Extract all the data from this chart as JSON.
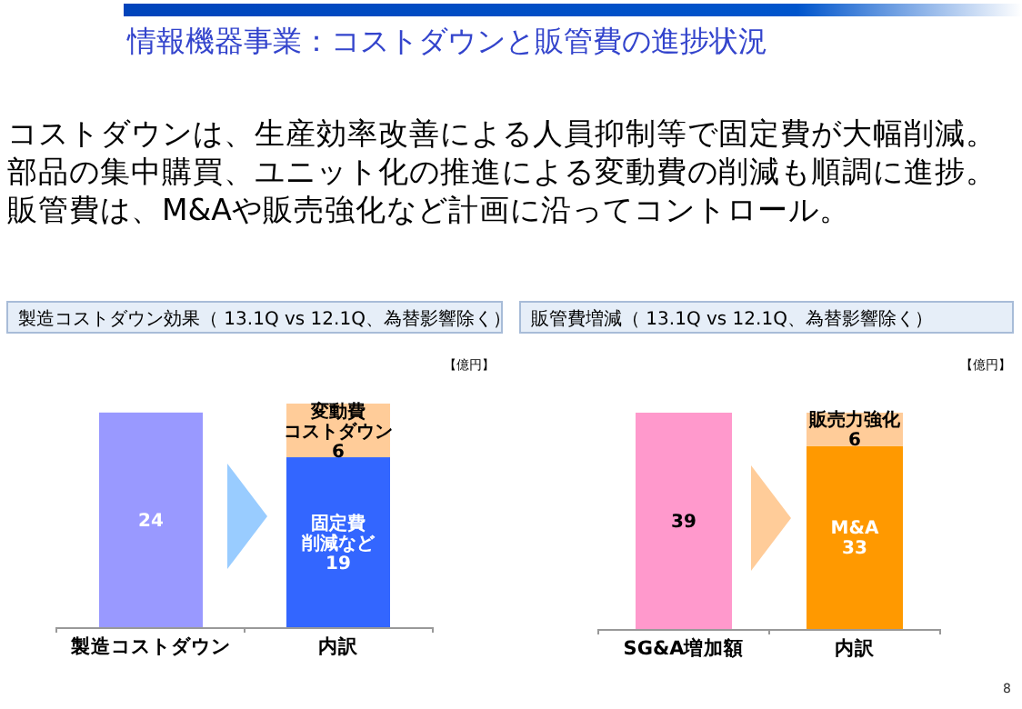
{
  "chart_data": [
    {
      "type": "other",
      "title": "情報機器事業：コストダウンと販管費の進捗状況",
      "annotations": [
        "コストダウンは、生産効率改善による人員抑制等で固定費が大幅削減。",
        "部品の集中購買、ユニット化の推進による変動費の削減も順調に進捗。",
        "販管費は、M&Aや販売強化など計画に沿ってコントロール。",
        "8"
      ]
    },
    {
      "type": "bar",
      "stacked": true,
      "title": "製造コストダウン効果（ 13.1Q vs 12.1Q、為替影響除く）",
      "annotations": [
        "【億円】"
      ],
      "categories": [
        "製造コストダウン",
        "内訳"
      ],
      "series": [
        {
          "values": [
            24,
            19
          ],
          "colors": [
            "#9999ff",
            "#3366ff"
          ],
          "value_labels": [
            "24",
            "固定費削減など\n19"
          ]
        },
        {
          "values": [
            null,
            6
          ],
          "color": "#ffcc99",
          "value_labels": [
            null,
            "変動費コストダウン\n6"
          ]
        }
      ]
    },
    {
      "type": "bar",
      "stacked": true,
      "title": "販管費増減（ 13.1Q vs 12.1Q、為替影響除く）",
      "annotations": [
        "【億円】"
      ],
      "categories": [
        "SG&A増加額",
        "内訳"
      ],
      "series": [
        {
          "values": [
            39,
            33
          ],
          "colors": [
            "#ff99cc",
            "#ff9900"
          ],
          "value_labels": [
            "39",
            "M&A\n33"
          ]
        },
        {
          "values": [
            null,
            6
          ],
          "color": "#ffcc99",
          "value_labels": [
            null,
            "販売力強化\n6"
          ]
        }
      ]
    }
  ]
}
